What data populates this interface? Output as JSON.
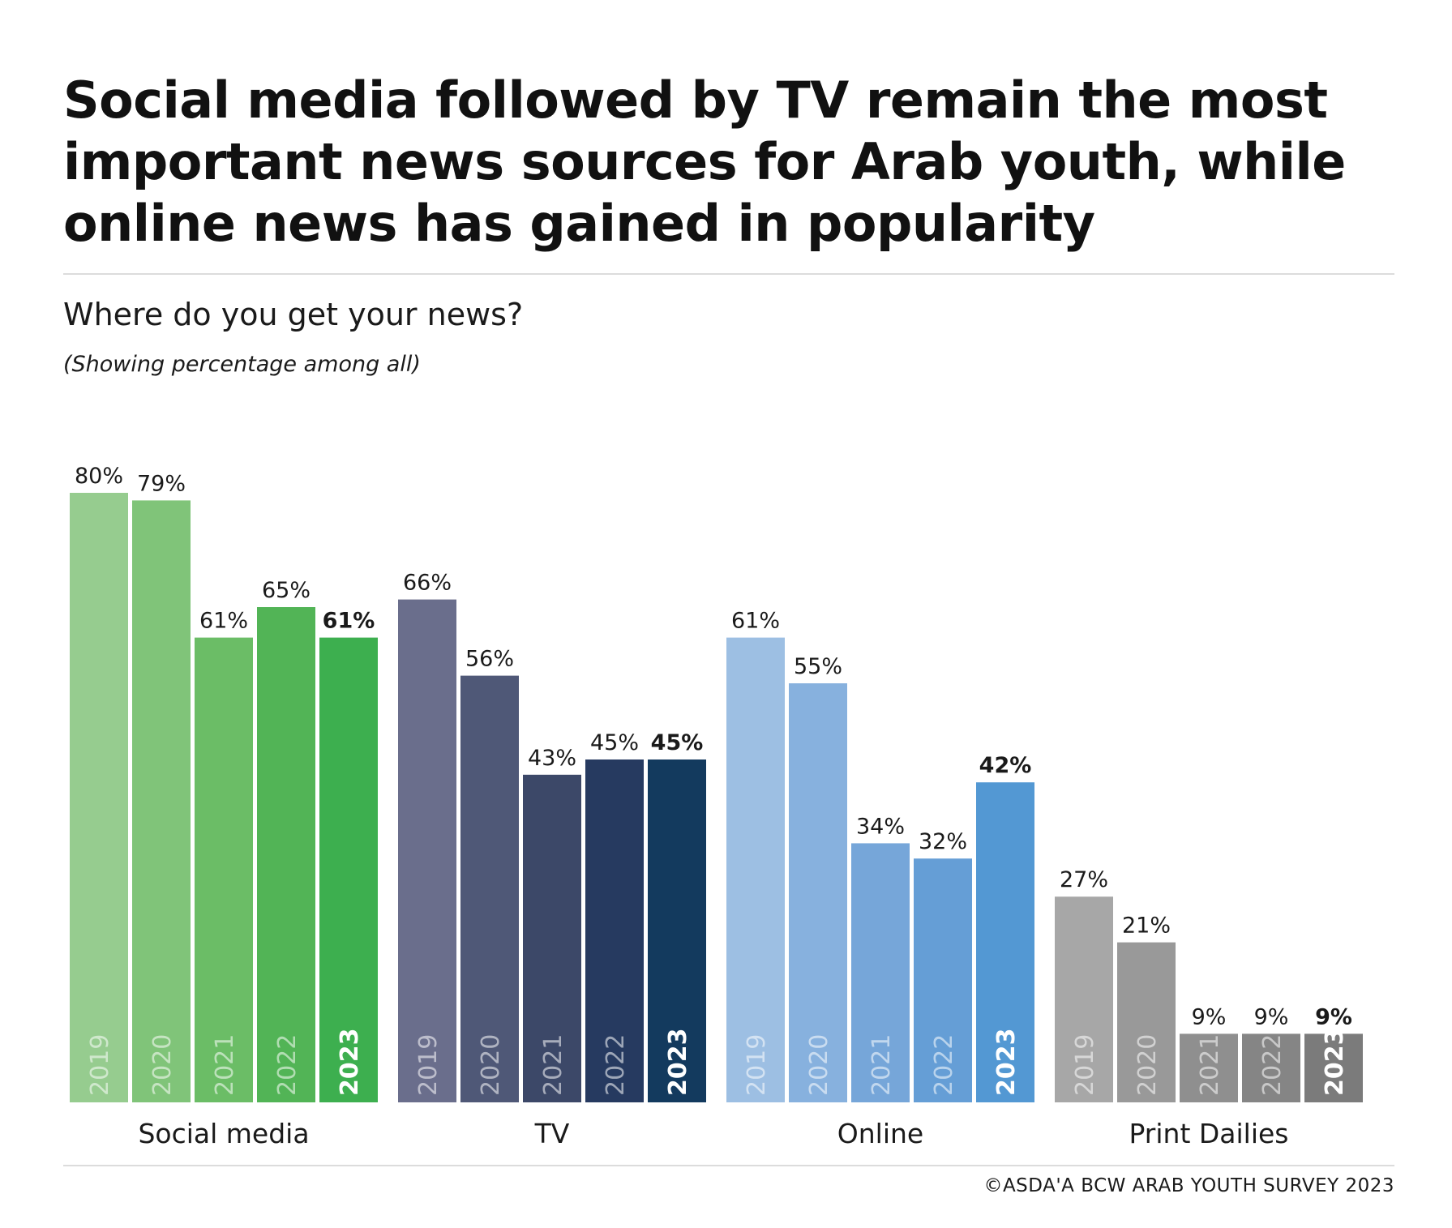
{
  "header": {
    "title": "Social media followed by TV remain the most important news sources for Arab youth, while online news has gained in popularity",
    "subtitle": "Where do you get your news?",
    "note": "(Showing percentage among all)"
  },
  "footer": {
    "source": "©ASDA'A BCW ARAB YOUTH SURVEY 2023"
  },
  "chart_data": {
    "type": "bar",
    "categories": [
      "Social media",
      "TV",
      "Online",
      "Print Dailies"
    ],
    "years": [
      "2019",
      "2020",
      "2021",
      "2022",
      "2023"
    ],
    "groups": [
      {
        "category": "Social media",
        "values": [
          80,
          79,
          61,
          65,
          61
        ],
        "labels": [
          "80%",
          "79%",
          "61%",
          "65%",
          "61%"
        ],
        "colors": [
          "#96cc8f",
          "#80c479",
          "#6bbd66",
          "#52b456",
          "#3daf4f"
        ]
      },
      {
        "category": "TV",
        "values": [
          66,
          56,
          43,
          45,
          45
        ],
        "labels": [
          "66%",
          "56%",
          "43%",
          "45%",
          "45%"
        ],
        "colors": [
          "#6a6e8c",
          "#4f5877",
          "#3c4868",
          "#263a60",
          "#133a5e"
        ]
      },
      {
        "category": "Online",
        "values": [
          61,
          55,
          34,
          32,
          42
        ],
        "labels": [
          "61%",
          "55%",
          "34%",
          "32%",
          "42%"
        ],
        "colors": [
          "#9dbfe3",
          "#87b1de",
          "#76a6d9",
          "#659ed6",
          "#5398d3"
        ]
      },
      {
        "category": "Print Dailies",
        "values": [
          27,
          21,
          9,
          9,
          9
        ],
        "labels": [
          "27%",
          "21%",
          "9%",
          "9%",
          "9%"
        ],
        "colors": [
          "#a7a7a7",
          "#999999",
          "#8f8f8f",
          "#858585",
          "#7b7b7b"
        ]
      }
    ],
    "highlight_year": "2023",
    "ylim": [
      0,
      80
    ],
    "grid": false,
    "legend": "none"
  }
}
